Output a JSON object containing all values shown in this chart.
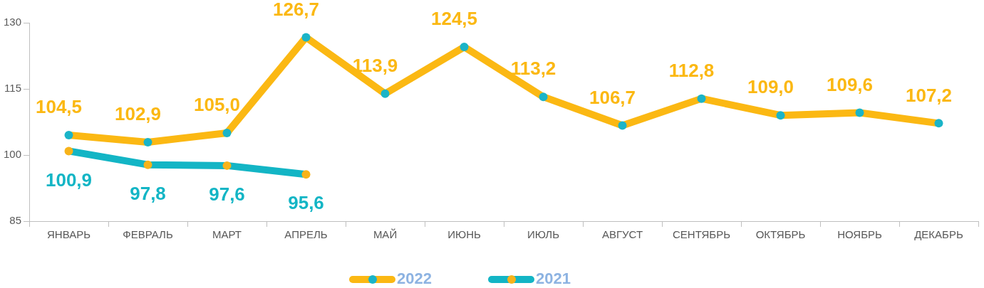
{
  "chart_data": {
    "type": "line",
    "categories": [
      "ЯНВАРЬ",
      "ФЕВРАЛЬ",
      "МАРТ",
      "АПРЕЛЬ",
      "МАЙ",
      "ИЮНЬ",
      "ИЮЛЬ",
      "АВГУСТ",
      "СЕНТЯБРЬ",
      "ОКТЯБРЬ",
      "НОЯБРЬ",
      "ДЕКАБРЬ"
    ],
    "series": [
      {
        "name": "2022",
        "color": "#fbb813",
        "colors": [
          "#1ab4c8",
          "#1ab4c8",
          "#1ab4c8",
          "#1ab4c8",
          "#1ab4c8",
          "#1ab4c8",
          "#1ab4c8",
          "#1ab4c8",
          "#1ab4c8",
          "#1ab4c8",
          "#1ab4c8",
          "#1ab4c8"
        ],
        "values": [
          104.5,
          102.9,
          105.0,
          126.7,
          113.9,
          124.5,
          113.2,
          106.7,
          112.8,
          109.0,
          109.6,
          107.2
        ],
        "value_labels": [
          "104,5",
          "102,9",
          "105,0",
          "126,7",
          "113,9",
          "124,5",
          "113,2",
          "106,7",
          "112,8",
          "109,0",
          "109,6",
          "107,2"
        ]
      },
      {
        "name": "2021",
        "color": "#13b5c5",
        "colors": [
          "#f7b31a",
          "#f7b31a",
          "#f7b31a",
          "#f7b31a",
          null,
          null,
          null,
          null,
          null,
          null,
          null,
          null
        ],
        "values": [
          100.9,
          97.8,
          97.6,
          95.6,
          null,
          null,
          null,
          null,
          null,
          null,
          null,
          null
        ],
        "value_labels": [
          "100,9",
          "97,8",
          "97,6",
          "95,6",
          null,
          null,
          null,
          null,
          null,
          null,
          null,
          null
        ]
      }
    ],
    "ylim": [
      85,
      130
    ],
    "yticks": [
      85,
      100,
      115,
      130
    ],
    "grid": false,
    "legend": "bottom",
    "marker": "circle",
    "line_style": "solid"
  }
}
